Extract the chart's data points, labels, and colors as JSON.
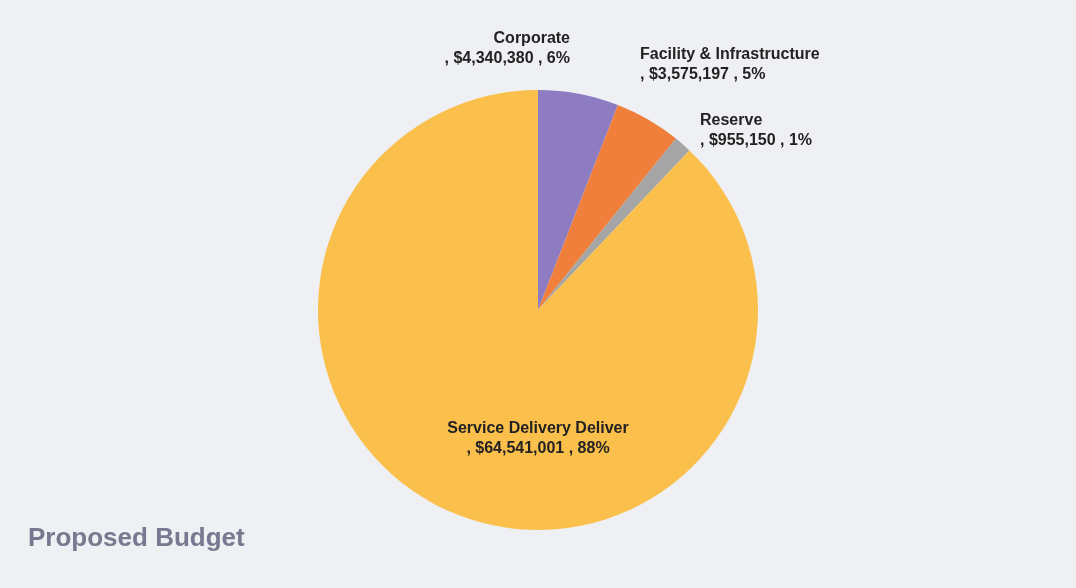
{
  "chart_data": {
    "type": "pie",
    "title": "Proposed Budget",
    "categories": [
      "Corporate",
      "Facility & Infrastructure",
      "Reserve",
      "Service Delivery Deliver"
    ],
    "values": [
      4340380,
      3575197,
      955150,
      64541001
    ],
    "colors": [
      "#8e7cc3",
      "#f07f3c",
      "#a5a5a5",
      "#fbbf4b"
    ],
    "value_labels": [
      ", $4,340,380 , 6%",
      ", $3,575,197 , 5%",
      ",  $955,150 , 1%",
      ", $64,541,001 , 88%"
    ]
  }
}
